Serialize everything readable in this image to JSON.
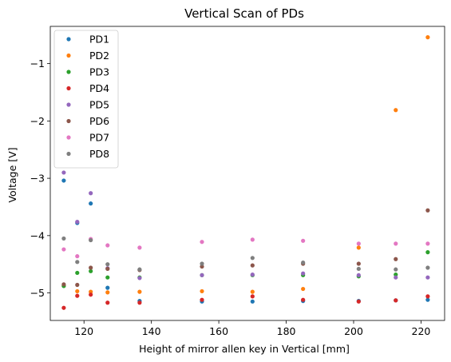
{
  "chart_data": {
    "type": "scatter",
    "title": "Vertical Scan of PDs",
    "xlabel": "Height of mirror allen key in Vertical [mm]",
    "ylabel": "Voltage [V]",
    "xlim": [
      110,
      227
    ],
    "ylim": [
      -5.48,
      -0.35
    ],
    "xticks": [
      120,
      140,
      160,
      180,
      200,
      220
    ],
    "yticks": [
      -5,
      -4,
      -3,
      -2,
      -1
    ],
    "ytick_labels": [
      "−5",
      "−4",
      "−3",
      "−2",
      "−1"
    ],
    "grid": false,
    "legend_position": "upper-left",
    "x": [
      114,
      118,
      122,
      127,
      136.5,
      155,
      170,
      185,
      201.5,
      212.5,
      222
    ],
    "series": [
      {
        "name": "PD1",
        "color": "#1f77b4",
        "values": [
          -3.04,
          -3.78,
          -3.44,
          -4.91,
          -5.14,
          -5.15,
          -5.15,
          -5.14,
          -5.14,
          -5.13,
          -5.12
        ]
      },
      {
        "name": "PD2",
        "color": "#ff7f0e",
        "values": [
          -4.87,
          -4.97,
          -4.98,
          -4.99,
          -4.98,
          -4.97,
          -4.98,
          -4.93,
          -4.21,
          -1.81,
          -0.54
        ]
      },
      {
        "name": "PD3",
        "color": "#2ca02c",
        "values": [
          -4.88,
          -4.65,
          -4.62,
          -4.73,
          -4.73,
          -4.69,
          -4.69,
          -4.69,
          -4.71,
          -4.68,
          -4.29
        ]
      },
      {
        "name": "PD4",
        "color": "#d62728",
        "values": [
          -5.26,
          -5.05,
          -5.03,
          -5.17,
          -5.17,
          -5.12,
          -5.06,
          -5.12,
          -5.15,
          -5.13,
          -5.06
        ]
      },
      {
        "name": "PD5",
        "color": "#9467bd",
        "values": [
          -2.9,
          -3.76,
          -3.26,
          -4.57,
          -4.74,
          -4.69,
          -4.68,
          -4.66,
          -4.69,
          -4.73,
          -4.73
        ]
      },
      {
        "name": "PD6",
        "color": "#8c564b",
        "values": [
          -4.85,
          -4.86,
          -4.56,
          -4.58,
          -4.6,
          -4.54,
          -4.52,
          -4.49,
          -4.49,
          -4.41,
          -3.56
        ]
      },
      {
        "name": "PD7",
        "color": "#e377c2",
        "values": [
          -4.24,
          -4.36,
          -4.06,
          -4.17,
          -4.21,
          -4.11,
          -4.07,
          -4.09,
          -4.14,
          -4.14,
          -4.14
        ]
      },
      {
        "name": "PD8",
        "color": "#7f7f7f",
        "values": [
          -4.05,
          -4.46,
          -4.08,
          -4.5,
          -4.59,
          -4.49,
          -4.39,
          -4.47,
          -4.58,
          -4.59,
          -4.56
        ]
      }
    ]
  }
}
